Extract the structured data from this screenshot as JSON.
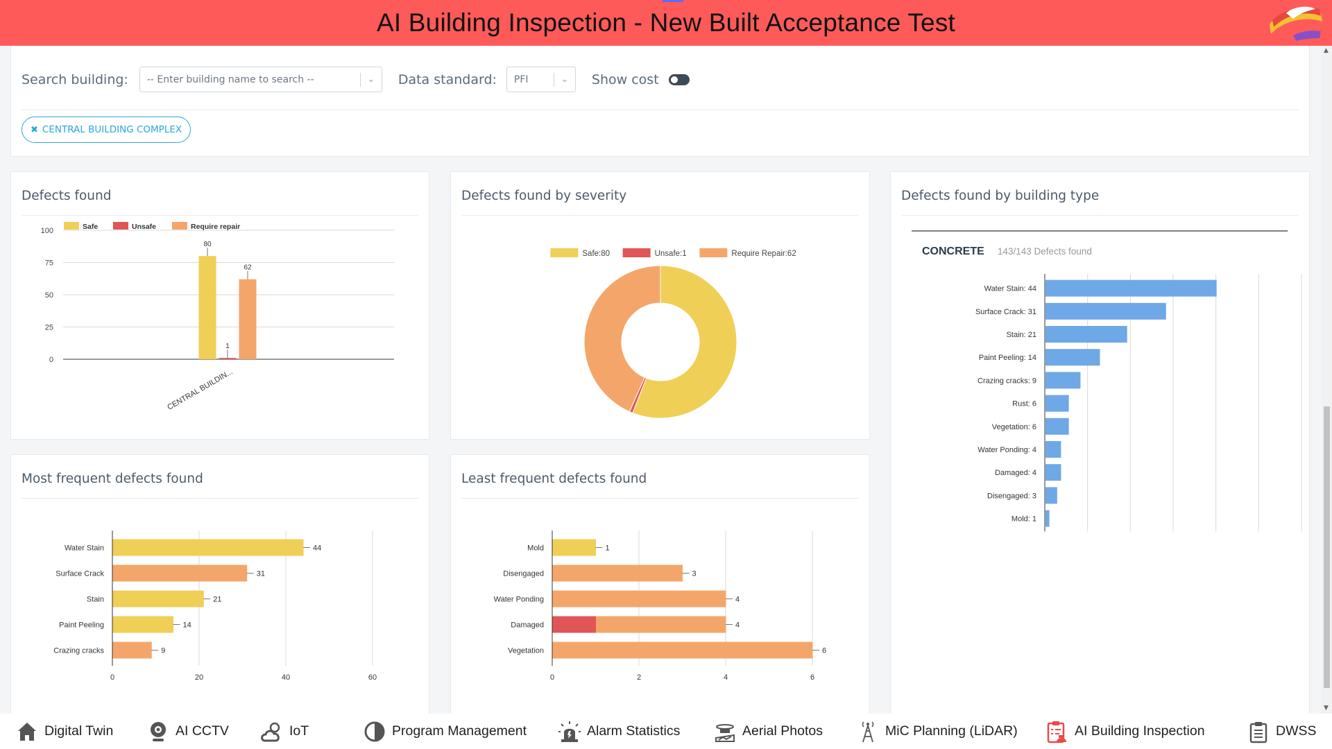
{
  "app": {
    "title": "AI Building Inspection - New Built Acceptance Test"
  },
  "filters": {
    "search_label": "Search building:",
    "search_placeholder": "-- Enter building name to search --",
    "standard_label": "Data standard:",
    "standard_value": "PFI",
    "show_cost_label": "Show cost",
    "show_cost_on": false,
    "chip_label": "CENTRAL BUILDING COMPLEX"
  },
  "cards": {
    "defects_found": "Defects found",
    "by_severity": "Defects found by severity",
    "by_type": "Defects found by building type",
    "most_frequent": "Most frequent defects found",
    "least_frequent": "Least frequent defects found"
  },
  "chart_data": [
    {
      "id": "defects_found",
      "type": "bar",
      "categories": [
        "CENTRAL BUILDIN..."
      ],
      "series": [
        {
          "name": "Safe",
          "values": [
            80
          ],
          "color": "#efcf56"
        },
        {
          "name": "Unsafe",
          "values": [
            1
          ],
          "color": "#e05555"
        },
        {
          "name": "Require repair",
          "values": [
            62
          ],
          "color": "#f4a66a"
        }
      ],
      "ylim": [
        0,
        100
      ],
      "yticks": [
        "0",
        "25",
        "50",
        "75",
        "100"
      ],
      "legend": "top-left"
    },
    {
      "id": "by_severity",
      "type": "pie",
      "labels": [
        "Safe:80",
        "Unsafe:1",
        "Require Repair:62"
      ],
      "values": [
        80,
        1,
        62
      ],
      "colors": [
        "#efcf56",
        "#e05555",
        "#f4a66a"
      ],
      "legend": "top"
    },
    {
      "id": "by_type",
      "type": "bar",
      "orientation": "horizontal",
      "group_label": "CONCRETE",
      "group_summary": "143/143 Defects found",
      "categories": [
        "Water Stain: 44",
        "Surface Crack: 31",
        "Stain: 21",
        "Paint Peeling: 14",
        "Crazing cracks: 9",
        "Rust: 6",
        "Vegetation: 6",
        "Water Ponding: 4",
        "Damaged: 4",
        "Disengaged: 3",
        "Mold: 1"
      ],
      "values": [
        44,
        31,
        21,
        14,
        9,
        6,
        6,
        4,
        4,
        3,
        1
      ],
      "xlim": [
        0,
        66
      ],
      "color": "#6fa8e6"
    },
    {
      "id": "most_frequent",
      "type": "bar",
      "orientation": "horizontal",
      "categories": [
        "Water Stain",
        "Surface Crack",
        "Stain",
        "Paint Peeling",
        "Crazing cracks"
      ],
      "values": [
        44,
        31,
        21,
        14,
        9
      ],
      "value_labels": [
        "44",
        "31",
        "21",
        "14",
        "9"
      ],
      "colors": [
        "#efcf56",
        "#f4a66a",
        "#efcf56",
        "#efcf56",
        "#f4a66a"
      ],
      "xlim": [
        0,
        60
      ],
      "xticks": [
        "0",
        "20",
        "40",
        "60"
      ]
    },
    {
      "id": "least_frequent",
      "type": "bar",
      "orientation": "horizontal",
      "stacked": true,
      "categories": [
        "Mold",
        "Disengaged",
        "Water Ponding",
        "Damaged",
        "Vegetation"
      ],
      "segments": [
        [
          {
            "v": 1,
            "color": "#efcf56"
          }
        ],
        [
          {
            "v": 3,
            "color": "#f4a66a"
          }
        ],
        [
          {
            "v": 4,
            "color": "#f4a66a"
          }
        ],
        [
          {
            "v": 1,
            "color": "#e05555"
          },
          {
            "v": 3,
            "color": "#f4a66a"
          }
        ],
        [
          {
            "v": 6,
            "color": "#f4a66a"
          }
        ]
      ],
      "value_labels": [
        "1",
        "3",
        "4",
        "4",
        "6"
      ],
      "xlim": [
        0,
        6
      ],
      "xticks": [
        "0",
        "2",
        "4",
        "6"
      ]
    }
  ],
  "nav": [
    {
      "label": "Digital Twin",
      "icon": "home-icon",
      "color": "#555"
    },
    {
      "label": "AI CCTV",
      "icon": "webcam-icon",
      "color": "#555"
    },
    {
      "label": "IoT",
      "icon": "cloud-sun-icon",
      "color": "#555"
    },
    {
      "label": "Program Management",
      "icon": "pie-icon",
      "color": "#555"
    },
    {
      "label": "Alarm Statistics",
      "icon": "alarm-icon",
      "color": "#555"
    },
    {
      "label": "Aerial Photos",
      "icon": "drone-icon",
      "color": "#555"
    },
    {
      "label": "MiC Planning (LiDAR)",
      "icon": "antenna-icon",
      "color": "#555"
    },
    {
      "label": "AI Building Inspection",
      "icon": "clipboard-alert-icon",
      "color": "#e84a4a"
    },
    {
      "label": "DWSS",
      "icon": "clipboard-list-icon",
      "color": "#555"
    }
  ]
}
